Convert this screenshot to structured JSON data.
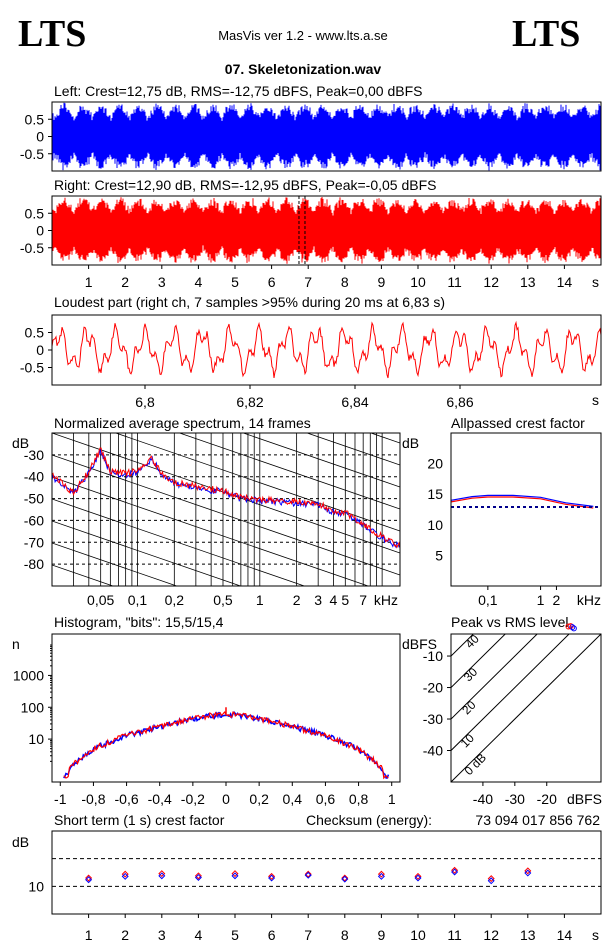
{
  "header": {
    "logo_left": "LTS",
    "logo_right": "LTS",
    "app_title": "MasVis ver 1.2 - www.lts.a.se",
    "file_title": "07. Skeletonization.wav"
  },
  "colors": {
    "left": "#0000ff",
    "right": "#ff0000",
    "ink": "#000000",
    "ref": "#00008b"
  },
  "chart_data": [
    {
      "type": "area",
      "title": "Left: Crest=12,75 dB, RMS=-12,75 dBFS, Peak=0,00 dBFS",
      "yticks": [
        "0.5",
        "0",
        "-0.5"
      ],
      "ylim": [
        -1,
        1
      ],
      "color": "#0000ff"
    },
    {
      "type": "area",
      "title": "Right: Crest=12,90 dB, RMS=-12,95 dBFS, Peak=-0,05 dBFS",
      "yticks": [
        "0.5",
        "0",
        "-0.5"
      ],
      "xticks": [
        "1",
        "2",
        "3",
        "4",
        "5",
        "6",
        "7",
        "8",
        "9",
        "10",
        "11",
        "12",
        "13",
        "14"
      ],
      "xunit": "s",
      "xlim": [
        0,
        15
      ],
      "ylim": [
        -1,
        1
      ],
      "marker_at": 6.83,
      "color": "#ff0000"
    },
    {
      "type": "line",
      "title": "Loudest part (right ch, 7 samples >95% during 20 ms at 6,83 s)",
      "yticks": [
        "0.5",
        "0",
        "-0.5"
      ],
      "xticks": [
        "6,8",
        "6,82",
        "6,84",
        "6,86"
      ],
      "xunit": "s",
      "color": "#ff0000"
    },
    {
      "type": "line",
      "title": "Normalized average spectrum, 14 frames",
      "ylabel": "dB",
      "yticks": [
        "-30",
        "-40",
        "-50",
        "-60",
        "-70",
        "-80"
      ],
      "xticks": [
        "0,05",
        "0,1",
        "0,2",
        "0,5",
        "1",
        "2",
        "3",
        "4",
        "5",
        "7"
      ],
      "xunit": "kHz",
      "series": [
        {
          "points": [
            [
              0.02,
              -40
            ],
            [
              0.03,
              -48
            ],
            [
              0.04,
              -38
            ],
            [
              0.05,
              -28
            ],
            [
              0.06,
              -38
            ],
            [
              0.08,
              -39
            ],
            [
              0.1,
              -38
            ],
            [
              0.13,
              -32
            ],
            [
              0.17,
              -41
            ],
            [
              0.2,
              -43
            ],
            [
              0.3,
              -45
            ],
            [
              0.5,
              -47
            ],
            [
              0.7,
              -50
            ],
            [
              1,
              -51
            ],
            [
              2,
              -52
            ],
            [
              3,
              -53
            ],
            [
              4,
              -56
            ],
            [
              5,
              -57
            ],
            [
              7,
              -62
            ],
            [
              10,
              -68
            ],
            [
              14,
              -72
            ]
          ]
        }
      ]
    },
    {
      "type": "line",
      "title": "Allpassed crest factor",
      "ylabel": "dB",
      "yticks": [
        "20",
        "15",
        "10",
        "5"
      ],
      "xticks": [
        "0,1",
        "1",
        "2"
      ],
      "xunit": "kHz",
      "ylim": [
        0,
        25
      ],
      "reference": 12.9,
      "series": [
        {
          "points": [
            [
              0.02,
              14
            ],
            [
              0.05,
              14.6
            ],
            [
              0.1,
              14.8
            ],
            [
              0.3,
              14.8
            ],
            [
              1,
              14.5
            ],
            [
              3,
              13.6
            ],
            [
              10,
              13
            ]
          ]
        }
      ]
    },
    {
      "type": "bar",
      "title": "Histogram, \"bits\": 15,5/15,4",
      "ylabel": "n",
      "yticks": [
        "1000",
        "100",
        "10"
      ],
      "xticks": [
        "-1",
        "-0,8",
        "-0,6",
        "-0,4",
        "-0,2",
        "0",
        "0,2",
        "0,4",
        "0,6",
        "0,8",
        "1"
      ],
      "xlim": [
        -1.05,
        1.05
      ],
      "series": [
        {
          "points": [
            [
              -0.95,
              1
            ],
            [
              -0.85,
              3
            ],
            [
              -0.8,
              5
            ],
            [
              -0.7,
              8
            ],
            [
              -0.6,
              13
            ],
            [
              -0.5,
              18
            ],
            [
              -0.4,
              25
            ],
            [
              -0.3,
              34
            ],
            [
              -0.2,
              45
            ],
            [
              -0.1,
              55
            ],
            [
              0,
              62
            ],
            [
              0.1,
              55
            ],
            [
              0.2,
              45
            ],
            [
              0.3,
              34
            ],
            [
              0.4,
              25
            ],
            [
              0.5,
              18
            ],
            [
              0.6,
              13
            ],
            [
              0.7,
              8
            ],
            [
              0.8,
              5
            ],
            [
              0.85,
              3
            ],
            [
              0.95,
              1
            ]
          ]
        }
      ]
    },
    {
      "type": "scatter",
      "title": "Peak vs RMS level",
      "ylabel": "dBFS",
      "yticks": [
        "-10",
        "-20",
        "-30",
        "-40"
      ],
      "xticks": [
        "-40",
        "-30",
        "-20"
      ],
      "xunit": "dBFS",
      "diagonal_labels": [
        "40",
        "30",
        "20",
        "10",
        "0 dB"
      ],
      "series": [
        {
          "points": [
            [
              -12.5,
              -0.5
            ],
            [
              -12.0,
              -0.8
            ],
            [
              -13.2,
              -0.6
            ],
            [
              -11.5,
              -1.2
            ]
          ]
        }
      ]
    },
    {
      "type": "scatter",
      "title": "Short term (1 s) crest factor",
      "checksum_label": "Checksum (energy):",
      "checksum_value": "73 094 017 856 762",
      "ylabel": "dB",
      "yticks": [
        "10"
      ],
      "xticks": [
        "1",
        "2",
        "3",
        "4",
        "5",
        "6",
        "7",
        "8",
        "9",
        "10",
        "11",
        "12",
        "13",
        "14"
      ],
      "xunit": "s",
      "ylim": [
        5,
        20
      ],
      "series": [
        {
          "name": "",
          "x": [
            1,
            2,
            3,
            4,
            5,
            6,
            7,
            8,
            9,
            10,
            11,
            12,
            13
          ],
          "y": [
            11.5,
            12.2,
            12.3,
            11.9,
            12.3,
            11.8,
            12.2,
            11.5,
            12.2,
            11.8,
            12.9,
            11.4,
            12.8
          ]
        },
        {
          "name": "",
          "x": [
            1,
            2,
            3,
            4,
            5,
            6,
            7,
            8,
            9,
            10,
            11,
            12,
            13
          ],
          "y": [
            11.2,
            11.8,
            11.9,
            11.6,
            11.9,
            11.5,
            12.0,
            11.3,
            11.8,
            11.5,
            12.6,
            11.0,
            12.4
          ]
        }
      ]
    }
  ]
}
